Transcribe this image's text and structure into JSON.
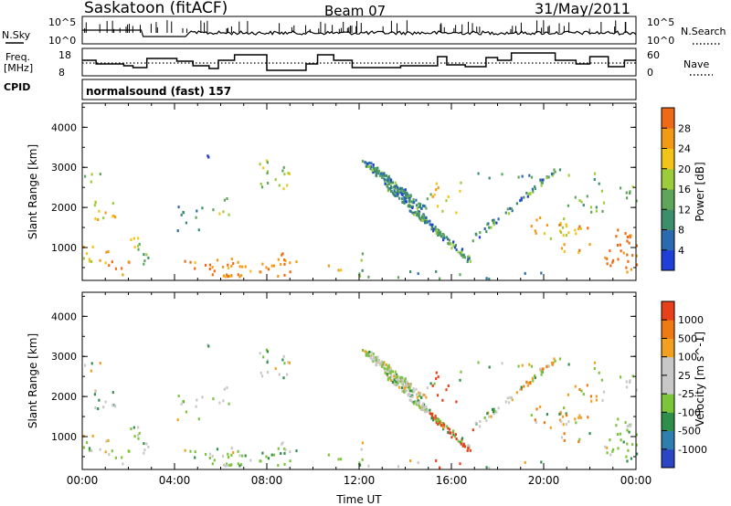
{
  "header": {
    "station": "Saskatoon  (fitACF)",
    "beam": "Beam 07",
    "date": "31/May/2011"
  },
  "aux_panels": {
    "nsky_label": "N.Sky",
    "nsky_ticks": [
      "10^5",
      "10^0"
    ],
    "nsearch_label": "N.Search",
    "nsearch_ticks": [
      "10^5",
      "10^0"
    ],
    "freq_label_1": "Freq.",
    "freq_label_2": "[MHz]",
    "freq_ticks": [
      "18",
      "8"
    ],
    "nave_label": "Nave",
    "nave_ticks": [
      "60",
      "0"
    ],
    "cpid_label": "CPID",
    "cpid_value": "normalsound (fast) 157"
  },
  "colors": {
    "power_scale": [
      "#1f3fd8",
      "#2a6ab0",
      "#3c8f6a",
      "#5fa65a",
      "#9ccc3a",
      "#f2c418",
      "#f29a14",
      "#ef6a16",
      "#e62a12"
    ],
    "velocity_scale": [
      "#2b46c4",
      "#2e7fb0",
      "#2f8f4a",
      "#7cc43a",
      "#c8c8c8",
      "#c8c8c8",
      "#f2a020",
      "#f07a12",
      "#e8401a",
      "#e01010"
    ]
  },
  "chart_data": [
    {
      "type": "heatmap",
      "name": "power",
      "ylabel": "Slant Range [km]",
      "xlabel": "",
      "ylim": [
        180,
        4600
      ],
      "xlim": [
        0,
        24
      ],
      "yticks": [
        "1000",
        "2000",
        "3000",
        "4000"
      ],
      "colorbar_label": "Power [dB]",
      "colorbar_ticks": [
        "4",
        "8",
        "12",
        "16",
        "20",
        "24",
        "28"
      ]
    },
    {
      "type": "heatmap",
      "name": "velocity",
      "ylabel": "Slant Range [km]",
      "xlabel": "Time UT",
      "ylim": [
        180,
        4600
      ],
      "xlim": [
        0,
        24
      ],
      "yticks": [
        "1000",
        "2000",
        "3000",
        "4000"
      ],
      "xticks": [
        "00:00",
        "04:00",
        "08:00",
        "12:00",
        "16:00",
        "20:00",
        "00:00"
      ],
      "colorbar_label": "Velocity  [m s^-1]",
      "colorbar_ticks": [
        "1000",
        "500",
        "100",
        "25",
        "-25",
        "-100",
        "-500",
        "-1000"
      ]
    }
  ]
}
